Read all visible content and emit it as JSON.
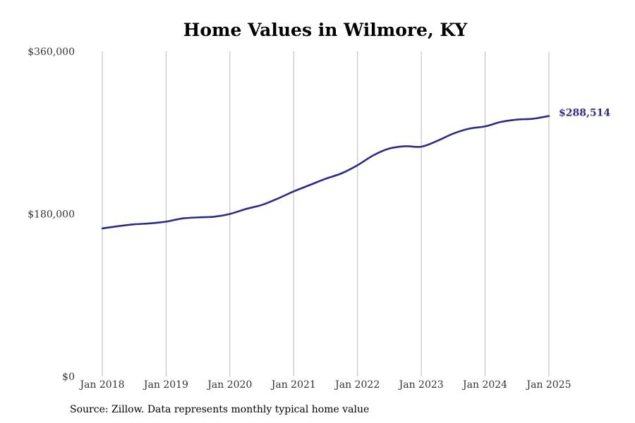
{
  "title": "Home Values in Wilmore, KY",
  "source_note": "Source: Zillow. Data represents monthly typical home value",
  "chart_data": {
    "type": "line",
    "title": "Home Values in Wilmore, KY",
    "xlabel": "",
    "ylabel": "",
    "ylim": [
      0,
      360000
    ],
    "xlim": [
      "2018-01",
      "2025-01"
    ],
    "y_ticks": [
      "$0",
      "$180,000",
      "$360,000"
    ],
    "y_tick_values": [
      0,
      180000,
      360000
    ],
    "x_ticks": [
      "Jan 2018",
      "Jan 2019",
      "Jan 2020",
      "Jan 2021",
      "Jan 2022",
      "Jan 2023",
      "Jan 2024",
      "Jan 2025"
    ],
    "x_tick_values": [
      "2018-01",
      "2019-01",
      "2020-01",
      "2021-01",
      "2022-01",
      "2023-01",
      "2024-01",
      "2025-01"
    ],
    "grid": "vertical",
    "line_color": "#2e2a85",
    "end_label": "$288,514",
    "series": [
      {
        "x": [
          "2018-01",
          "2018-04",
          "2018-07",
          "2018-10",
          "2019-01",
          "2019-04",
          "2019-07",
          "2019-10",
          "2020-01",
          "2020-04",
          "2020-07",
          "2020-10",
          "2021-01",
          "2021-04",
          "2021-07",
          "2021-10",
          "2022-01",
          "2022-04",
          "2022-07",
          "2022-10",
          "2023-01",
          "2023-04",
          "2023-07",
          "2023-10",
          "2024-01",
          "2024-04",
          "2024-07",
          "2024-10",
          "2025-01"
        ],
        "values": [
          164000,
          166500,
          168500,
          169600,
          171500,
          175000,
          176200,
          176900,
          180000,
          185500,
          190000,
          197000,
          205000,
          212000,
          219000,
          225000,
          234000,
          245000,
          252500,
          255000,
          254500,
          261000,
          269000,
          274500,
          277000,
          282000,
          284500,
          285500,
          288514
        ]
      }
    ]
  }
}
